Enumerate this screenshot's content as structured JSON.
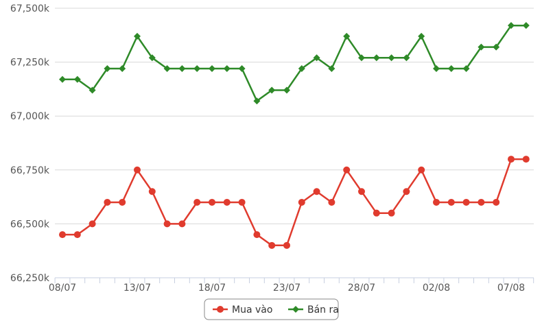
{
  "chart_data": {
    "type": "line",
    "x_ticks": [
      "08/07",
      "13/07",
      "18/07",
      "23/07",
      "28/07",
      "02/08",
      "07/08"
    ],
    "x_tick_index": [
      0,
      5,
      10,
      15,
      20,
      25,
      30
    ],
    "y_ticks": [
      "66,250k",
      "66,500k",
      "66,750k",
      "67,000k",
      "67,250k",
      "67,500k"
    ],
    "ylim": [
      66250,
      67500
    ],
    "legend_position": "bottom-center",
    "grid": true,
    "series": [
      {
        "name": "Mua vào",
        "color": "#e03b2e",
        "marker": "circle",
        "values": [
          66450,
          66450,
          66500,
          66600,
          66600,
          66750,
          66650,
          66500,
          66500,
          66600,
          66600,
          66600,
          66600,
          66450,
          66400,
          66400,
          66600,
          66650,
          66600,
          66750,
          66650,
          66550,
          66550,
          66650,
          66750,
          66600,
          66600,
          66600,
          66600,
          66600,
          66800,
          66800
        ]
      },
      {
        "name": "Bán ra",
        "color": "#2e8a28",
        "marker": "diamond",
        "values": [
          67170,
          67170,
          67120,
          67220,
          67220,
          67370,
          67270,
          67220,
          67220,
          67220,
          67220,
          67220,
          67220,
          67070,
          67120,
          67120,
          67220,
          67270,
          67220,
          67370,
          67270,
          67270,
          67270,
          67270,
          67370,
          67220,
          67220,
          67220,
          67320,
          67320,
          67420,
          67420
        ]
      }
    ]
  }
}
